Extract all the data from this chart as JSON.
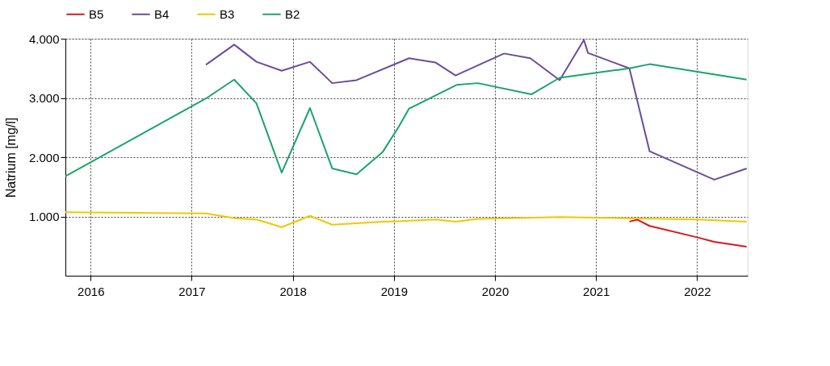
{
  "chart_data": {
    "type": "line",
    "ylabel": "Natrium [mg/l]",
    "xlim": [
      2015.75,
      2022.5
    ],
    "xticks": [
      2016,
      2017,
      2018,
      2019,
      2020,
      2021,
      2022
    ],
    "ylim": [
      0,
      4000
    ],
    "yticks": [
      {
        "value": 1000,
        "label": "1.000"
      },
      {
        "value": 2000,
        "label": "2.000"
      },
      {
        "value": 3000,
        "label": "3.000"
      },
      {
        "value": 4000,
        "label": "4.000"
      }
    ],
    "grid": true,
    "legend": "top",
    "line_style": "solid",
    "marker": "none",
    "series": [
      {
        "name": "B5",
        "color": "#d7191c",
        "x": [
          2021.33,
          2021.41,
          2021.53,
          2022.0,
          2022.17,
          2022.49
        ],
        "values": [
          913,
          945,
          840,
          648,
          571,
          489
        ]
      },
      {
        "name": "B4",
        "color": "#6a4c9c",
        "x": [
          2017.14,
          2017.42,
          2017.64,
          2017.89,
          2018.17,
          2018.39,
          2018.63,
          2019.15,
          2019.41,
          2019.61,
          2019.83,
          2020.09,
          2020.35,
          2020.64,
          2020.88,
          2020.92,
          2021.33,
          2021.53,
          2022.17,
          2022.49
        ],
        "values": [
          3560,
          3900,
          3610,
          3460,
          3610,
          3250,
          3300,
          3670,
          3600,
          3380,
          3550,
          3750,
          3670,
          3300,
          3980,
          3760,
          3500,
          2100,
          1620,
          1810
        ]
      },
      {
        "name": "B3",
        "color": "#f0c800",
        "x": [
          2015.75,
          2017.14,
          2017.43,
          2017.64,
          2017.89,
          2018.17,
          2018.39,
          2018.89,
          2019.05,
          2019.41,
          2019.61,
          2019.83,
          2020.64,
          2021.33,
          2022.0,
          2022.49
        ],
        "values": [
          1070,
          1050,
          970,
          950,
          820,
          1010,
          860,
          910,
          920,
          950,
          910,
          960,
          990,
          970,
          950,
          910
        ]
      },
      {
        "name": "B2",
        "color": "#1aa36e",
        "x": [
          2015.75,
          2017.14,
          2017.42,
          2017.64,
          2017.89,
          2018.17,
          2018.39,
          2018.63,
          2018.89,
          2019.05,
          2019.15,
          2019.62,
          2019.83,
          2020.36,
          2020.64,
          2021.33,
          2021.53,
          2022.49
        ],
        "values": [
          1680,
          2990,
          3310,
          2910,
          1740,
          2830,
          1810,
          1710,
          2090,
          2520,
          2820,
          3220,
          3250,
          3060,
          3340,
          3500,
          3570,
          3310
        ]
      }
    ]
  }
}
